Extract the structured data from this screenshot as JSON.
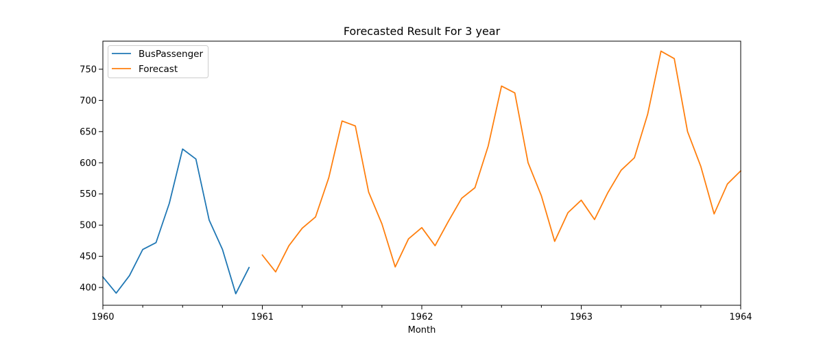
{
  "chart_data": {
    "type": "line",
    "title": "Forecasted Result For 3 year",
    "xlabel": "Month",
    "ylabel": "",
    "xlim": [
      "1960-01",
      "1964-01"
    ],
    "ylim": [
      371.5,
      795
    ],
    "x_major_ticks": [
      "1960-01",
      "1961-01",
      "1962-01",
      "1963-01",
      "1964-01"
    ],
    "x_tick_labels": [
      "1960",
      "1961",
      "1962",
      "1963",
      "1964"
    ],
    "x_minor_ticks": [
      "1960-04",
      "1960-07",
      "1960-10",
      "1961-04",
      "1961-07",
      "1961-10",
      "1962-04",
      "1962-07",
      "1962-10",
      "1963-04",
      "1963-07",
      "1963-10"
    ],
    "y_ticks": [
      400,
      450,
      500,
      550,
      600,
      650,
      700,
      750
    ],
    "y_tick_labels": [
      "400",
      "450",
      "500",
      "550",
      "600",
      "650",
      "700",
      "750"
    ],
    "grid": false,
    "legend": {
      "placement": "top-left"
    },
    "series": [
      {
        "name": "BusPassenger",
        "color": "#1f77b4",
        "x": [
          "1960-01",
          "1960-02",
          "1960-03",
          "1960-04",
          "1960-05",
          "1960-06",
          "1960-07",
          "1960-08",
          "1960-09",
          "1960-10",
          "1960-11",
          "1960-12"
        ],
        "values": [
          417,
          391,
          419,
          461,
          472,
          535,
          622,
          606,
          508,
          461,
          390,
          432
        ]
      },
      {
        "name": "Forecast",
        "color": "#ff7f0e",
        "x": [
          "1961-01",
          "1961-02",
          "1961-03",
          "1961-04",
          "1961-05",
          "1961-06",
          "1961-07",
          "1961-08",
          "1961-09",
          "1961-10",
          "1961-11",
          "1961-12",
          "1962-01",
          "1962-02",
          "1962-03",
          "1962-04",
          "1962-05",
          "1962-06",
          "1962-07",
          "1962-08",
          "1962-09",
          "1962-10",
          "1962-11",
          "1962-12",
          "1963-01",
          "1963-02",
          "1963-03",
          "1963-04",
          "1963-05",
          "1963-06",
          "1963-07",
          "1963-08",
          "1963-09",
          "1963-10",
          "1963-11",
          "1963-12",
          "1964-01"
        ],
        "values": [
          452,
          425,
          467,
          495,
          513,
          576,
          667,
          659,
          553,
          502,
          433,
          478,
          496,
          467,
          506,
          543,
          560,
          627,
          723,
          712,
          600,
          547,
          474,
          520,
          540,
          509,
          552,
          588,
          608,
          678,
          779,
          767,
          650,
          594,
          518,
          566,
          587
        ]
      }
    ]
  }
}
